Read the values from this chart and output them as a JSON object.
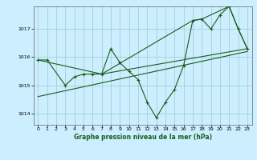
{
  "title": "Graphe pression niveau de la mer (hPa)",
  "bg_color": "#cceeff",
  "grid_color": "#99cccc",
  "line_color": "#1a5c1a",
  "xlim": [
    -0.5,
    23.5
  ],
  "ylim": [
    1013.6,
    1017.8
  ],
  "yticks": [
    1014,
    1015,
    1016,
    1017
  ],
  "xticks": [
    0,
    1,
    2,
    3,
    4,
    5,
    6,
    7,
    8,
    9,
    10,
    11,
    12,
    13,
    14,
    15,
    16,
    17,
    18,
    19,
    20,
    21,
    22,
    23
  ],
  "series1_x": [
    0,
    1,
    3,
    4,
    5,
    6,
    7,
    8,
    9,
    10,
    11,
    12,
    13,
    14,
    15,
    16,
    17,
    18,
    19,
    20,
    21,
    22,
    23
  ],
  "series1_y": [
    1015.9,
    1015.9,
    1015.0,
    1015.3,
    1015.4,
    1015.4,
    1015.4,
    1016.3,
    1015.8,
    1015.5,
    1015.2,
    1014.4,
    1013.85,
    1014.4,
    1014.85,
    1015.7,
    1017.3,
    1017.35,
    1017.0,
    1017.5,
    1017.8,
    1017.0,
    1016.3
  ],
  "series2_x": [
    0,
    7,
    23
  ],
  "series2_y": [
    1015.9,
    1015.4,
    1016.3
  ],
  "series3_x": [
    0,
    23
  ],
  "series3_y": [
    1014.6,
    1016.2
  ],
  "series4_x": [
    7,
    17,
    18,
    21,
    22,
    23
  ],
  "series4_y": [
    1015.4,
    1017.3,
    1017.35,
    1017.8,
    1017.0,
    1016.3
  ]
}
